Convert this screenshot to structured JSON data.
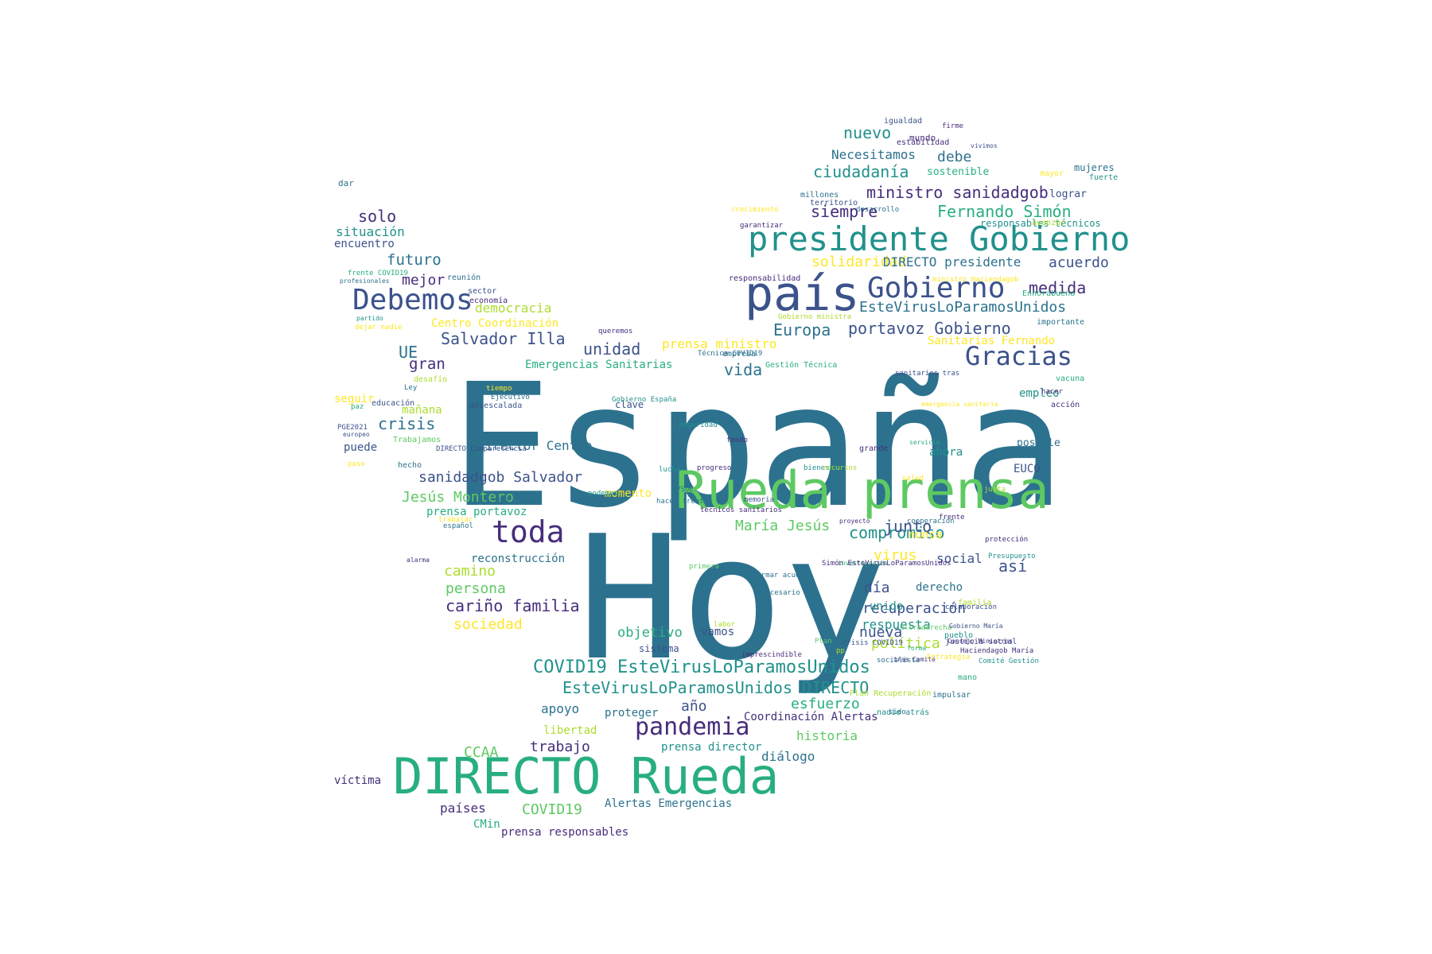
{
  "palette": [
    "#440154",
    "#472d7b",
    "#3b528b",
    "#2c728e",
    "#21918c",
    "#28ae80",
    "#5ec962",
    "#addc30",
    "#fde725"
  ],
  "words": [
    {
      "text": "España",
      "c": 3
    },
    {
      "text": "Hoy",
      "c": 3
    },
    {
      "text": "Rueda prensa",
      "c": 6
    },
    {
      "text": "DIRECTO Rueda",
      "c": 5
    },
    {
      "text": "país",
      "c": 2
    },
    {
      "text": "presidente Gobierno",
      "c": 4
    },
    {
      "text": "Gobierno",
      "c": 2
    },
    {
      "text": "Debemos",
      "c": 2
    },
    {
      "text": "toda",
      "c": 1
    },
    {
      "text": "Gracias",
      "c": 2
    },
    {
      "text": "pandemia",
      "c": 1
    },
    {
      "text": "COVID19 EsteVirusLoParamosUnidos",
      "c": 4
    },
    {
      "text": "EsteVirusLoParamosUnidos DIRECTO",
      "c": 4
    },
    {
      "text": "ministro sanidadgob",
      "c": 1
    },
    {
      "text": "Fernando Simón",
      "c": 5
    },
    {
      "text": "ciudadanía",
      "c": 4
    },
    {
      "text": "nuevo",
      "c": 4
    },
    {
      "text": "Necesitamos",
      "c": 3
    },
    {
      "text": "debe",
      "c": 3
    },
    {
      "text": "siempre",
      "c": 1
    },
    {
      "text": "solidaridad",
      "c": 8
    },
    {
      "text": "DIRECTO presidente",
      "c": 3
    },
    {
      "text": "acuerdo",
      "c": 2
    },
    {
      "text": "medida",
      "c": 1
    },
    {
      "text": "EsteVirusLoParamosUnidos",
      "c": 3
    },
    {
      "text": "portavoz Gobierno",
      "c": 2
    },
    {
      "text": "Europa",
      "c": 3
    },
    {
      "text": "solo",
      "c": 1
    },
    {
      "text": "situación",
      "c": 4
    },
    {
      "text": "encuentro",
      "c": 2
    },
    {
      "text": "futuro",
      "c": 3
    },
    {
      "text": "mejor",
      "c": 1
    },
    {
      "text": "democracia",
      "c": 7
    },
    {
      "text": "Centro Coordinación",
      "c": 8
    },
    {
      "text": "Salvador Illa",
      "c": 2
    },
    {
      "text": "UE",
      "c": 3
    },
    {
      "text": "gran",
      "c": 1
    },
    {
      "text": "unidad",
      "c": 2
    },
    {
      "text": "prensa ministro",
      "c": 8
    },
    {
      "text": "Emergencias Sanitarias",
      "c": 5
    },
    {
      "text": "vida",
      "c": 3
    },
    {
      "text": "crisis",
      "c": 3
    },
    {
      "text": "seguir",
      "c": 8
    },
    {
      "text": "mañana",
      "c": 7
    },
    {
      "text": "sanidadgob Salvador",
      "c": 2
    },
    {
      "text": "director Centro",
      "c": 3
    },
    {
      "text": "Jesús Montero",
      "c": 6
    },
    {
      "text": "prensa portavoz",
      "c": 5
    },
    {
      "text": "María Jesús",
      "c": 6
    },
    {
      "text": "compromiso",
      "c": 4
    },
    {
      "text": "junto",
      "c": 2
    },
    {
      "text": "social",
      "c": 2
    },
    {
      "text": "así",
      "c": 2
    },
    {
      "text": "virus",
      "c": 8
    },
    {
      "text": "día",
      "c": 2
    },
    {
      "text": "derecho",
      "c": 3
    },
    {
      "text": "recuperación",
      "c": 2
    },
    {
      "text": "respuesta",
      "c": 4
    },
    {
      "text": "nueva",
      "c": 2
    },
    {
      "text": "política",
      "c": 7
    },
    {
      "text": "camino",
      "c": 7
    },
    {
      "text": "persona",
      "c": 6
    },
    {
      "text": "cariño familia",
      "c": 1
    },
    {
      "text": "sociedad",
      "c": 8
    },
    {
      "text": "objetivo",
      "c": 5
    },
    {
      "text": "vamos",
      "c": 2
    },
    {
      "text": "año",
      "c": 2
    },
    {
      "text": "esfuerzo",
      "c": 5
    },
    {
      "text": "apoyo",
      "c": 3
    },
    {
      "text": "proteger",
      "c": 3
    },
    {
      "text": "Coordinación Alertas",
      "c": 1
    },
    {
      "text": "historia",
      "c": 6
    },
    {
      "text": "diálogo",
      "c": 3
    },
    {
      "text": "trabajo",
      "c": 1
    },
    {
      "text": "libertad",
      "c": 7
    },
    {
      "text": "CCAA",
      "c": 6
    },
    {
      "text": "víctima",
      "c": 1
    },
    {
      "text": "COVID19",
      "c": 6
    },
    {
      "text": "países",
      "c": 1
    },
    {
      "text": "Alertas Emergencias",
      "c": 3
    },
    {
      "text": "CMin",
      "c": 5
    },
    {
      "text": "prensa responsables",
      "c": 1
    },
    {
      "text": "reconstrucción",
      "c": 3
    },
    {
      "text": "empleo",
      "c": 4
    },
    {
      "text": "posible",
      "c": 3
    },
    {
      "text": "EUCO",
      "c": 2
    },
    {
      "text": "Sanitarias Fernando",
      "c": 8
    },
    {
      "text": "puede",
      "c": 2
    },
    {
      "text": "momento",
      "c": 8
    },
    {
      "text": "clave",
      "c": 2
    },
    {
      "text": "sistema",
      "c": 2
    },
    {
      "text": "prensa director",
      "c": 4
    },
    {
      "text": "mundo",
      "c": 1
    },
    {
      "text": "sostenible",
      "c": 5
    },
    {
      "text": "mujeres",
      "c": 3
    },
    {
      "text": "lograr",
      "c": 2
    },
    {
      "text": "responsables técnicos",
      "c": 4
    },
    {
      "text": "dar",
      "c": 3
    },
    {
      "text": "igualdad",
      "c": 2
    },
    {
      "text": "firme",
      "c": 1
    },
    {
      "text": "estabilidad",
      "c": 1
    },
    {
      "text": "vivimos",
      "c": 2
    },
    {
      "text": "mayor",
      "c": 8
    },
    {
      "text": "fuerte",
      "c": 4
    },
    {
      "text": "millones",
      "c": 3
    },
    {
      "text": "territorio",
      "c": 2
    },
    {
      "text": "desarrollo",
      "c": 3
    },
    {
      "text": "crecimiento",
      "c": 8
    },
    {
      "text": "garantizar",
      "c": 1
    },
    {
      "text": "avanzar",
      "c": 7
    },
    {
      "text": "responsabilidad",
      "c": 1
    },
    {
      "text": "ministro Haciendagob",
      "c": 8
    },
    {
      "text": "Enhorabuena",
      "c": 5
    },
    {
      "text": "importante",
      "c": 3
    },
    {
      "text": "Gobierno ministra",
      "c": 7
    },
    {
      "text": "frente COVID19",
      "c": 5
    },
    {
      "text": "reunión",
      "c": 3
    },
    {
      "text": "profesionales",
      "c": 3
    },
    {
      "text": "sector",
      "c": 2
    },
    {
      "text": "economía",
      "c": 1
    },
    {
      "text": "partido",
      "c": 4
    },
    {
      "text": "dejar nadie",
      "c": 8
    },
    {
      "text": "queremos",
      "c": 1
    },
    {
      "text": "Técnica COVID19",
      "c": 3
    },
    {
      "text": "empresa",
      "c": 3
    },
    {
      "text": "Gestión Técnica",
      "c": 5
    },
    {
      "text": "vacuna",
      "c": 5
    },
    {
      "text": "sanitarios tras",
      "c": 2
    },
    {
      "text": "acción",
      "c": 1
    },
    {
      "text": "hacer",
      "c": 1
    },
    {
      "text": "emergencia sanitaria",
      "c": 8
    },
    {
      "text": "desafío",
      "c": 7
    },
    {
      "text": "tiempo",
      "c": 8
    },
    {
      "text": "desescalada",
      "c": 2
    },
    {
      "text": "Ejecutivo",
      "c": 3
    },
    {
      "text": "educación",
      "c": 2
    },
    {
      "text": "Ley",
      "c": 3
    },
    {
      "text": "Gobierno España",
      "c": 4
    },
    {
      "text": "fondo",
      "c": 1
    },
    {
      "text": "paz",
      "c": 5
    },
    {
      "text": "PGE2021",
      "c": 2
    },
    {
      "text": "seguridad",
      "c": 4
    },
    {
      "text": "Trabajamos",
      "c": 6
    },
    {
      "text": "DIRECTO Comparecencia",
      "c": 2
    },
    {
      "text": "hecho",
      "c": 3
    },
    {
      "text": "paso",
      "c": 8
    },
    {
      "text": "europeo",
      "c": 2
    },
    {
      "text": "servicio",
      "c": 5
    },
    {
      "text": "bienestar",
      "c": 4
    },
    {
      "text": "progreso",
      "c": 1
    },
    {
      "text": "recursos",
      "c": 7
    },
    {
      "text": "grande",
      "c": 1
    },
    {
      "text": "salud",
      "c": 8
    },
    {
      "text": "podemos",
      "c": 4
    },
    {
      "text": "vez",
      "c": 3
    },
    {
      "text": "lucha",
      "c": 4
    },
    {
      "text": "PSOE",
      "c": 3
    },
    {
      "text": "memoria",
      "c": 2
    },
    {
      "text": "protección",
      "c": 1
    },
    {
      "text": "ahora",
      "c": 4
    },
    {
      "text": "frente",
      "c": 1
    },
    {
      "text": "hacer frente",
      "c": 3
    },
    {
      "text": "técnicos sanitarios",
      "c": 1
    },
    {
      "text": "proyecto",
      "c": 1
    },
    {
      "text": "justa",
      "c": 7
    },
    {
      "text": "Presupuesto",
      "c": 4
    },
    {
      "text": "trabajar",
      "c": 8
    },
    {
      "text": "español",
      "c": 3
    },
    {
      "text": "alarma",
      "c": 1
    },
    {
      "text": "cooperación",
      "c": 3
    },
    {
      "text": "nunca",
      "c": 8
    },
    {
      "text": "primera",
      "c": 6
    },
    {
      "text": "colaboración",
      "c": 2
    },
    {
      "text": "informar acuerdo",
      "c": 3
    },
    {
      "text": "necesario",
      "c": 3
    },
    {
      "text": "unido",
      "c": 4
    },
    {
      "text": "investigación",
      "c": 5
    },
    {
      "text": "Simón EsteVirusLoParamosUnidos",
      "c": 1
    },
    {
      "text": "ultraderecha",
      "c": 6
    },
    {
      "text": "crisis COVID19",
      "c": 2
    },
    {
      "text": "pp",
      "c": 7
    },
    {
      "text": "imprescindible",
      "c": 1
    },
    {
      "text": "tras Comité",
      "c": 1
    },
    {
      "text": "Plan",
      "c": 6
    },
    {
      "text": "labor",
      "c": 7
    },
    {
      "text": "Estrategia",
      "c": 8
    },
    {
      "text": "socialista",
      "c": 3
    },
    {
      "text": "justicia social",
      "c": 2
    },
    {
      "text": "familia",
      "c": 7
    },
    {
      "text": "Gobierno María",
      "c": 2
    },
    {
      "text": "pueblo",
      "c": 4
    },
    {
      "text": "Consejo Ministros",
      "c": 1
    },
    {
      "text": "Comité Gestión",
      "c": 4
    },
    {
      "text": "Haciendagob María",
      "c": 1
    },
    {
      "text": "mano",
      "c": 5
    },
    {
      "text": "Plan Recuperación",
      "c": 7
    },
    {
      "text": "impulsar",
      "c": 3
    },
    {
      "text": "nadie atrás",
      "c": 4
    },
    {
      "text": "sido",
      "c": 3
    },
    {
      "text": "forma",
      "c": 5
    }
  ]
}
